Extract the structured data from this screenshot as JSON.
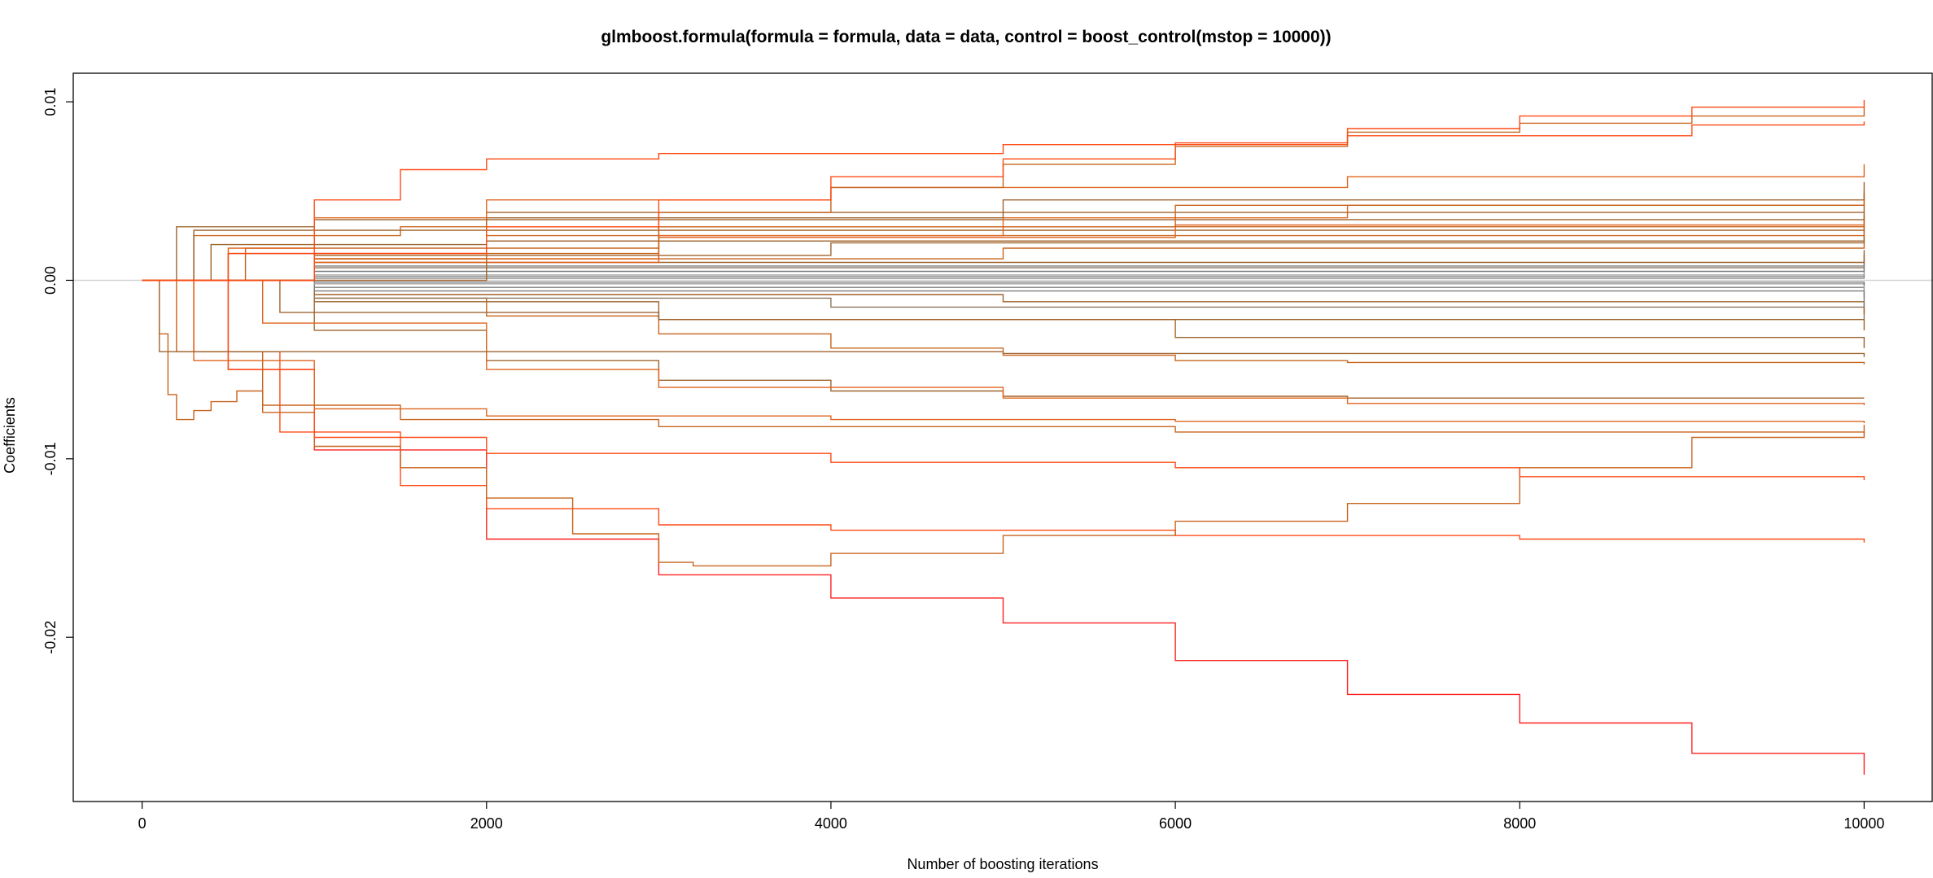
{
  "chart_data": {
    "type": "line",
    "title": "glmboost.formula(formula = formula, data = data, control = boost_control(mstop = 10000))",
    "xlabel": "Number of boosting iterations",
    "ylabel": "Coefficients",
    "xlim": [
      -400,
      10400
    ],
    "ylim": [
      -0.0292,
      0.0116
    ],
    "x_ticks": [
      0,
      2000,
      4000,
      6000,
      8000,
      10000
    ],
    "x_tick_labels": [
      "0",
      "2000",
      "4000",
      "6000",
      "8000",
      "10000"
    ],
    "y_ticks": [
      -0.02,
      -0.01,
      0.0,
      0.01
    ],
    "y_tick_labels": [
      "-0.02",
      "-0.01",
      "0.00",
      "0.01"
    ],
    "reference_line_y": 0,
    "grid": false,
    "colors": {
      "red": "#ff2020",
      "red_orange": "#ff4a14",
      "orange": "#e0641e",
      "dark_orange": "#c8641e",
      "brown": "#a0642d",
      "gray_brown": "#8c7860",
      "gray": "#7d7d7d",
      "light_gray": "#a0a0a0",
      "zero_line": "#d3d3d3"
    },
    "series": [
      {
        "color": "red",
        "points": [
          [
            0,
            0
          ],
          [
            500,
            -0.005
          ],
          [
            1000,
            -0.0095
          ],
          [
            2000,
            -0.0145
          ],
          [
            3000,
            -0.0165
          ],
          [
            4000,
            -0.0178
          ],
          [
            5000,
            -0.0192
          ],
          [
            6000,
            -0.0213
          ],
          [
            7000,
            -0.0232
          ],
          [
            8000,
            -0.0248
          ],
          [
            9000,
            -0.0265
          ],
          [
            10000,
            -0.0277
          ]
        ]
      },
      {
        "color": "red_orange",
        "points": [
          [
            0,
            0
          ],
          [
            300,
            -0.004
          ],
          [
            800,
            -0.0085
          ],
          [
            1500,
            -0.0115
          ],
          [
            2000,
            -0.0128
          ],
          [
            3000,
            -0.0137
          ],
          [
            4000,
            -0.014
          ],
          [
            6000,
            -0.0143
          ],
          [
            8000,
            -0.0145
          ],
          [
            10000,
            -0.0147
          ]
        ]
      },
      {
        "color": "dark_orange",
        "points": [
          [
            0,
            0
          ],
          [
            100,
            -0.003
          ],
          [
            150,
            -0.0064
          ],
          [
            200,
            -0.0078
          ],
          [
            300,
            -0.0073
          ],
          [
            400,
            -0.0068
          ],
          [
            550,
            -0.0062
          ],
          [
            700,
            -0.0074
          ],
          [
            1000,
            -0.0093
          ],
          [
            1500,
            -0.0105
          ],
          [
            2000,
            -0.0122
          ],
          [
            2500,
            -0.0142
          ],
          [
            3000,
            -0.0158
          ],
          [
            3200,
            -0.016
          ],
          [
            4000,
            -0.0153
          ],
          [
            5000,
            -0.0143
          ],
          [
            6000,
            -0.0135
          ],
          [
            7000,
            -0.0125
          ],
          [
            8000,
            -0.0105
          ],
          [
            9000,
            -0.0088
          ],
          [
            10000,
            -0.0081
          ]
        ]
      },
      {
        "color": "red_orange",
        "points": [
          [
            0,
            0
          ],
          [
            500,
            -0.005
          ],
          [
            1000,
            -0.0088
          ],
          [
            2000,
            -0.0097
          ],
          [
            4000,
            -0.0102
          ],
          [
            6000,
            -0.0105
          ],
          [
            8000,
            -0.011
          ],
          [
            10000,
            -0.0112
          ]
        ]
      },
      {
        "color": "orange",
        "points": [
          [
            0,
            0
          ],
          [
            300,
            -0.0045
          ],
          [
            1000,
            -0.0072
          ],
          [
            2000,
            -0.0076
          ],
          [
            4000,
            -0.0078
          ],
          [
            6000,
            -0.0079
          ],
          [
            10000,
            -0.008
          ]
        ]
      },
      {
        "color": "dark_orange",
        "points": [
          [
            0,
            0
          ],
          [
            200,
            -0.004
          ],
          [
            700,
            -0.007
          ],
          [
            1500,
            -0.0078
          ],
          [
            3000,
            -0.0082
          ],
          [
            6000,
            -0.0085
          ],
          [
            10000,
            -0.0086
          ]
        ]
      },
      {
        "color": "brown",
        "points": [
          [
            0,
            0
          ],
          [
            1000,
            -0.0028
          ],
          [
            2000,
            -0.0045
          ],
          [
            3000,
            -0.0056
          ],
          [
            4000,
            -0.0062
          ],
          [
            5000,
            -0.0065
          ],
          [
            7000,
            -0.0066
          ],
          [
            10000,
            -0.0066
          ]
        ]
      },
      {
        "color": "orange",
        "points": [
          [
            0,
            0
          ],
          [
            700,
            -0.0024
          ],
          [
            2000,
            -0.005
          ],
          [
            3000,
            -0.006
          ],
          [
            5000,
            -0.0066
          ],
          [
            7000,
            -0.0069
          ],
          [
            10000,
            -0.007
          ]
        ]
      },
      {
        "color": "brown",
        "points": [
          [
            0,
            0
          ],
          [
            100,
            -0.004
          ],
          [
            1000,
            -0.004
          ],
          [
            5000,
            -0.0041
          ],
          [
            10000,
            -0.0043
          ]
        ]
      },
      {
        "color": "dark_orange",
        "points": [
          [
            0,
            0
          ],
          [
            1000,
            -0.001
          ],
          [
            2000,
            -0.002
          ],
          [
            3000,
            -0.003
          ],
          [
            4000,
            -0.0038
          ],
          [
            5000,
            -0.0042
          ],
          [
            6000,
            -0.0045
          ],
          [
            7000,
            -0.0046
          ],
          [
            10000,
            -0.0047
          ]
        ]
      },
      {
        "color": "brown",
        "points": [
          [
            0,
            0
          ],
          [
            1000,
            -0.0012
          ],
          [
            3000,
            -0.0022
          ],
          [
            6000,
            -0.0032
          ],
          [
            10000,
            -0.0038
          ]
        ]
      },
      {
        "color": "brown",
        "points": [
          [
            0,
            0
          ],
          [
            800,
            -0.0018
          ],
          [
            3000,
            -0.0022
          ],
          [
            10000,
            -0.0028
          ]
        ]
      },
      {
        "color": "gray_brown",
        "points": [
          [
            0,
            0
          ],
          [
            1000,
            -0.001
          ],
          [
            4000,
            -0.0015
          ],
          [
            10000,
            -0.0022
          ]
        ]
      },
      {
        "color": "brown",
        "points": [
          [
            0,
            0
          ],
          [
            1000,
            -0.0008
          ],
          [
            5000,
            -0.0012
          ],
          [
            10000,
            -0.0019
          ]
        ]
      },
      {
        "color": "gray",
        "points": [
          [
            0,
            0
          ],
          [
            1000,
            -0.0006
          ],
          [
            10000,
            -0.0015
          ]
        ]
      },
      {
        "color": "gray",
        "points": [
          [
            0,
            0
          ],
          [
            1000,
            -0.0004
          ],
          [
            10000,
            -0.001
          ]
        ]
      },
      {
        "color": "light_gray",
        "points": [
          [
            0,
            0
          ],
          [
            1000,
            -0.0002
          ],
          [
            10000,
            -0.0006
          ]
        ]
      },
      {
        "color": "gray",
        "points": [
          [
            0,
            0
          ],
          [
            1000,
            -0.0001
          ],
          [
            10000,
            -0.0003
          ]
        ]
      },
      {
        "color": "light_gray",
        "points": [
          [
            0,
            0
          ],
          [
            1000,
            0.0001
          ],
          [
            10000,
            0.0002
          ]
        ]
      },
      {
        "color": "gray",
        "points": [
          [
            0,
            0
          ],
          [
            1000,
            0.0002
          ],
          [
            10000,
            0.0004
          ]
        ]
      },
      {
        "color": "light_gray",
        "points": [
          [
            0,
            0
          ],
          [
            1000,
            0.0003
          ],
          [
            10000,
            0.0006
          ]
        ]
      },
      {
        "color": "gray",
        "points": [
          [
            0,
            0
          ],
          [
            1000,
            0.0005
          ],
          [
            10000,
            0.0009
          ]
        ]
      },
      {
        "color": "gray_brown",
        "points": [
          [
            0,
            0
          ],
          [
            1000,
            0.0007
          ],
          [
            10000,
            0.0012
          ]
        ]
      },
      {
        "color": "gray",
        "points": [
          [
            0,
            0
          ],
          [
            1000,
            0.0008
          ],
          [
            10000,
            0.0015
          ]
        ]
      },
      {
        "color": "brown",
        "points": [
          [
            0,
            0
          ],
          [
            1000,
            0.001
          ],
          [
            10000,
            0.0017
          ]
        ]
      },
      {
        "color": "dark_orange",
        "points": [
          [
            0,
            0
          ],
          [
            1000,
            0.0012
          ],
          [
            5000,
            0.0018
          ],
          [
            10000,
            0.0021
          ]
        ]
      },
      {
        "color": "brown",
        "points": [
          [
            0,
            0
          ],
          [
            1000,
            0.0014
          ],
          [
            4000,
            0.0021
          ],
          [
            10000,
            0.0025
          ]
        ]
      },
      {
        "color": "brown",
        "points": [
          [
            0,
            0
          ],
          [
            500,
            0.0015
          ],
          [
            2000,
            0.0022
          ],
          [
            10000,
            0.0028
          ]
        ]
      },
      {
        "color": "dark_orange",
        "points": [
          [
            0,
            0
          ],
          [
            600,
            0.0018
          ],
          [
            3000,
            0.0025
          ],
          [
            10000,
            0.003
          ]
        ]
      },
      {
        "color": "brown",
        "points": [
          [
            0,
            0
          ],
          [
            400,
            0.002
          ],
          [
            2000,
            0.0028
          ],
          [
            10000,
            0.0034
          ]
        ]
      },
      {
        "color": "orange",
        "points": [
          [
            0,
            0
          ],
          [
            1000,
            0.0012
          ],
          [
            3000,
            0.0024
          ],
          [
            6000,
            0.0031
          ],
          [
            10000,
            0.0037
          ]
        ]
      },
      {
        "color": "dark_orange",
        "points": [
          [
            0,
            0
          ],
          [
            300,
            0.0025
          ],
          [
            1500,
            0.003
          ],
          [
            10000,
            0.0036
          ]
        ]
      },
      {
        "color": "brown",
        "points": [
          [
            0,
            0
          ],
          [
            200,
            0.003
          ],
          [
            1000,
            0.0034
          ],
          [
            10000,
            0.0039
          ]
        ]
      },
      {
        "color": "brown",
        "points": [
          [
            0,
            0
          ],
          [
            300,
            0.0028
          ],
          [
            2000,
            0.0038
          ],
          [
            10000,
            0.0043
          ]
        ]
      },
      {
        "color": "orange",
        "points": [
          [
            0,
            0
          ],
          [
            1000,
            0.001
          ],
          [
            3000,
            0.0025
          ],
          [
            5000,
            0.0035
          ],
          [
            7000,
            0.0042
          ],
          [
            10000,
            0.0048
          ]
        ]
      },
      {
        "color": "dark_orange",
        "points": [
          [
            0,
            0
          ],
          [
            1000,
            0.0015
          ],
          [
            3000,
            0.003
          ],
          [
            6000,
            0.0042
          ],
          [
            10000,
            0.005
          ]
        ]
      },
      {
        "color": "brown",
        "points": [
          [
            0,
            0
          ],
          [
            2000,
            0.0035
          ],
          [
            5000,
            0.0045
          ],
          [
            10000,
            0.0055
          ]
        ]
      },
      {
        "color": "orange",
        "points": [
          [
            0,
            0
          ],
          [
            500,
            0.0018
          ],
          [
            1000,
            0.0035
          ],
          [
            2000,
            0.0045
          ],
          [
            4000,
            0.0052
          ],
          [
            7000,
            0.0058
          ],
          [
            10000,
            0.0065
          ]
        ]
      },
      {
        "color": "red_orange",
        "points": [
          [
            0,
            0
          ],
          [
            500,
            0.0015
          ],
          [
            1000,
            0.0045
          ],
          [
            1500,
            0.0062
          ],
          [
            2000,
            0.0068
          ],
          [
            3000,
            0.0071
          ],
          [
            5000,
            0.0076
          ],
          [
            7000,
            0.0081
          ],
          [
            9000,
            0.0087
          ],
          [
            10000,
            0.0089
          ]
        ]
      },
      {
        "color": "dark_orange",
        "points": [
          [
            0,
            0
          ],
          [
            1000,
            0.0012
          ],
          [
            2000,
            0.0025
          ],
          [
            3000,
            0.0038
          ],
          [
            4000,
            0.0052
          ],
          [
            5000,
            0.0065
          ],
          [
            6000,
            0.0075
          ],
          [
            7000,
            0.0083
          ],
          [
            8000,
            0.0088
          ],
          [
            9000,
            0.0092
          ],
          [
            10000,
            0.0097
          ]
        ]
      },
      {
        "color": "red_orange",
        "points": [
          [
            0,
            0
          ],
          [
            1000,
            0.0015
          ],
          [
            2000,
            0.003
          ],
          [
            3000,
            0.0045
          ],
          [
            4000,
            0.0058
          ],
          [
            5000,
            0.0068
          ],
          [
            6000,
            0.0077
          ],
          [
            7000,
            0.0085
          ],
          [
            8000,
            0.0092
          ],
          [
            9000,
            0.0097
          ],
          [
            10000,
            0.0101
          ]
        ]
      }
    ]
  }
}
